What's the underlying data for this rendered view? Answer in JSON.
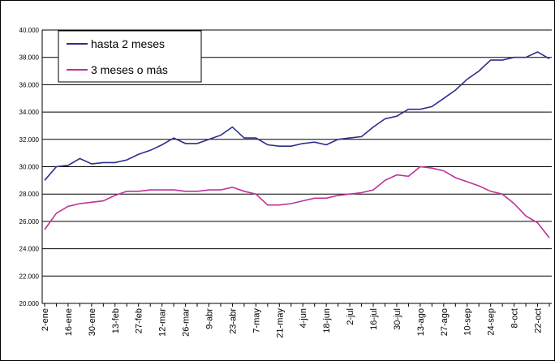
{
  "chart_data": {
    "type": "line",
    "categories": [
      "2-ene",
      null,
      "16-ene",
      null,
      "30-ene",
      null,
      "13-feb",
      null,
      "27-feb",
      null,
      "12-mar",
      null,
      "26-mar",
      null,
      "9-abr",
      null,
      "23-abr",
      null,
      "7-may",
      null,
      "21-may",
      null,
      "4-jun",
      null,
      "18-jun",
      null,
      "2-jul",
      null,
      "16-jul",
      null,
      "30-jul",
      null,
      "13-ago",
      null,
      "27-ago",
      null,
      "10-sep",
      null,
      "24-sep",
      null,
      "8-oct",
      null,
      "22-oct",
      null
    ],
    "series": [
      {
        "name": "hasta 2 meses",
        "color": "#2e2e8c",
        "values": [
          29000,
          30000,
          30100,
          30600,
          30200,
          30300,
          30300,
          30500,
          30900,
          31200,
          31600,
          32100,
          31700,
          31700,
          32000,
          32300,
          32900,
          32100,
          32100,
          31600,
          31500,
          31500,
          31700,
          31800,
          31600,
          32000,
          32100,
          32200,
          32900,
          33500,
          33700,
          34200,
          34200,
          34400,
          35000,
          35600,
          36400,
          37000,
          37800,
          37800,
          38000,
          38000,
          38400,
          37900
        ]
      },
      {
        "name": "3 meses o más",
        "color": "#c0309a",
        "values": [
          25400,
          26600,
          27100,
          27300,
          27400,
          27500,
          27900,
          28200,
          28200,
          28300,
          28300,
          28300,
          28200,
          28200,
          28300,
          28300,
          28500,
          28200,
          28000,
          27200,
          27200,
          27300,
          27500,
          27700,
          27700,
          27900,
          28000,
          28100,
          28300,
          29000,
          29400,
          29300,
          30000,
          29900,
          29700,
          29200,
          28900,
          28600,
          28200,
          28000,
          27300,
          26400,
          25900,
          24800
        ]
      }
    ],
    "ylim": [
      20000,
      40000
    ],
    "yticks": [
      {
        "value": 20000,
        "label": "20.000"
      },
      {
        "value": 22000,
        "label": "22.000"
      },
      {
        "value": 24000,
        "label": "24.000"
      },
      {
        "value": 26000,
        "label": "26.000"
      },
      {
        "value": 28000,
        "label": "28.000"
      },
      {
        "value": 30000,
        "label": "30.000"
      },
      {
        "value": 32000,
        "label": "32.000"
      },
      {
        "value": 34000,
        "label": "34.000"
      },
      {
        "value": 36000,
        "label": "36.000"
      },
      {
        "value": 38000,
        "label": "38.000"
      },
      {
        "value": 40000,
        "label": "40.000"
      }
    ],
    "grid": true,
    "legend": "top-left"
  }
}
